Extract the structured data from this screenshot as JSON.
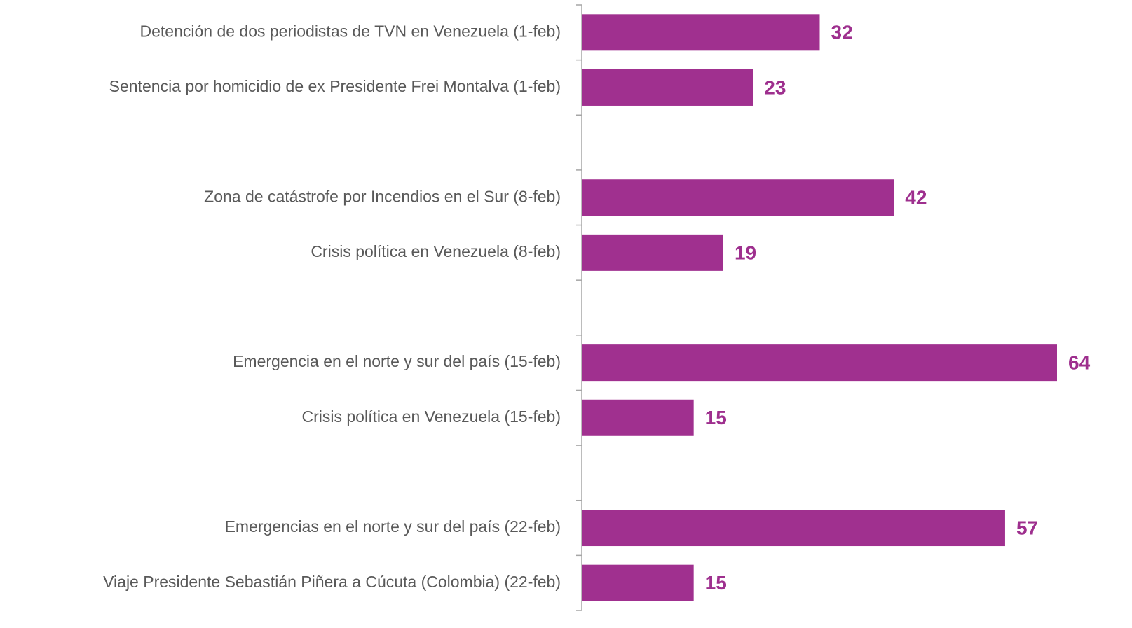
{
  "chart_data": {
    "type": "bar",
    "orientation": "horizontal",
    "color": "#a0308f",
    "categories": [
      "Detención de dos periodistas de TVN en Venezuela (1-feb)",
      "Sentencia por homicidio de ex Presidente Frei Montalva (1-feb)",
      null,
      "Zona de catástrofe por Incendios en el Sur (8-feb)",
      "Crisis política en Venezuela (8-feb)",
      null,
      "Emergencia en el norte y sur del país (15-feb)",
      "Crisis política en Venezuela (15-feb)",
      null,
      "Emergencias en el norte y sur del país (22-feb)",
      "Viaje Presidente Sebastián Piñera a Cúcuta  (Colombia) (22-feb)"
    ],
    "values": [
      32,
      23,
      null,
      42,
      19,
      null,
      64,
      15,
      null,
      57,
      15
    ]
  }
}
